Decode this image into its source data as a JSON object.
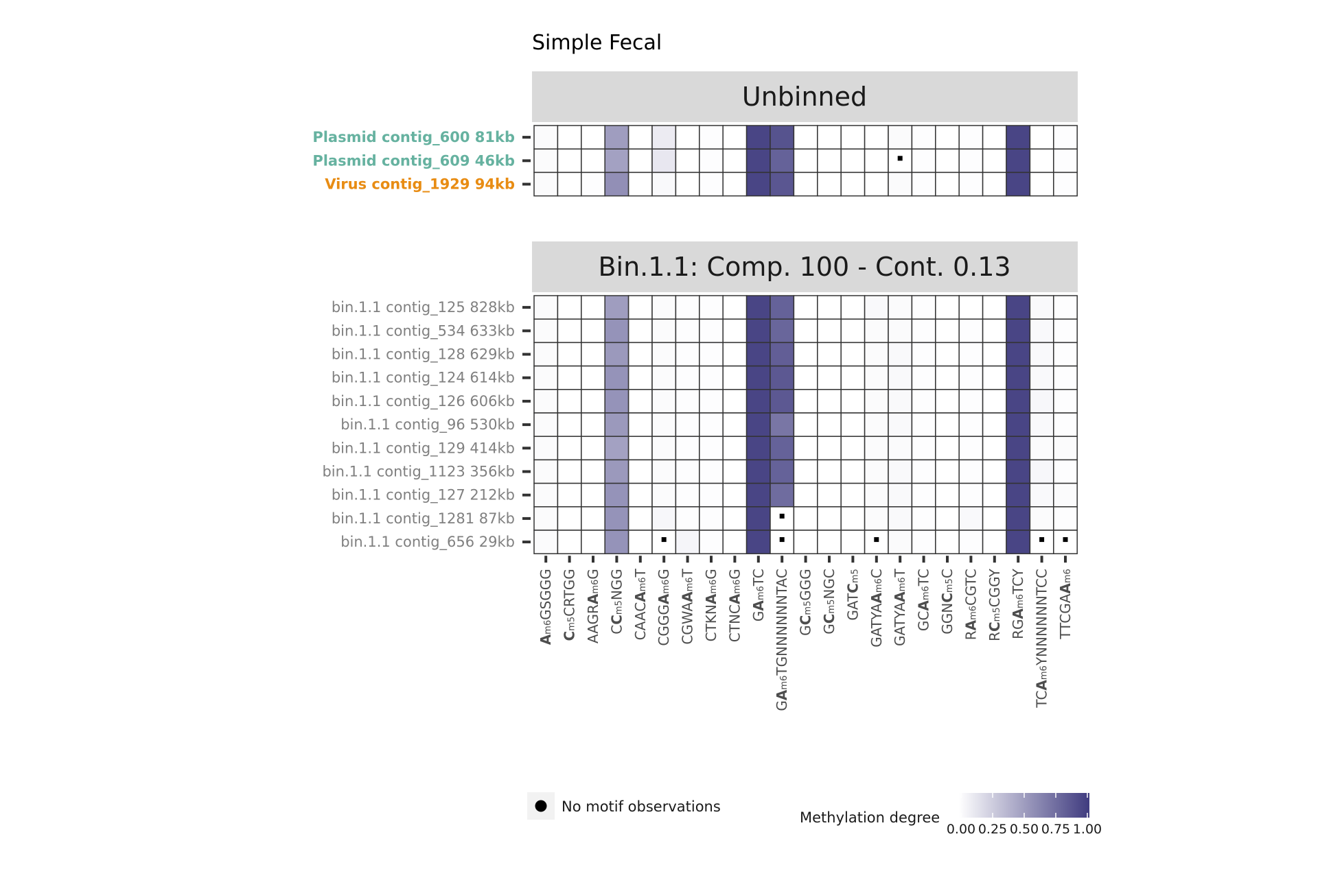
{
  "chart_data": {
    "type": "heatmap",
    "title": "Simple Fecal",
    "motifs": [
      [
        {
          "t": "A",
          "b": true
        },
        {
          "t": "m6",
          "s": true
        },
        {
          "t": "GSGGG"
        }
      ],
      [
        {
          "t": "C",
          "b": true
        },
        {
          "t": "m5",
          "s": true
        },
        {
          "t": "CRTGG"
        }
      ],
      [
        {
          "t": "AAGR"
        },
        {
          "t": "A",
          "b": true
        },
        {
          "t": "m6",
          "s": true
        },
        {
          "t": "G"
        }
      ],
      [
        {
          "t": "C"
        },
        {
          "t": "C",
          "b": true
        },
        {
          "t": "m5",
          "s": true
        },
        {
          "t": "NGG"
        }
      ],
      [
        {
          "t": "CAAC"
        },
        {
          "t": "A",
          "b": true
        },
        {
          "t": "m6",
          "s": true
        },
        {
          "t": "T"
        }
      ],
      [
        {
          "t": "CGGG"
        },
        {
          "t": "A",
          "b": true
        },
        {
          "t": "m6",
          "s": true
        },
        {
          "t": "G"
        }
      ],
      [
        {
          "t": "CGWA"
        },
        {
          "t": "A",
          "b": true
        },
        {
          "t": "m6",
          "s": true
        },
        {
          "t": "T"
        }
      ],
      [
        {
          "t": "CTKN"
        },
        {
          "t": "A",
          "b": true
        },
        {
          "t": "m6",
          "s": true
        },
        {
          "t": "G"
        }
      ],
      [
        {
          "t": "CTNC"
        },
        {
          "t": "A",
          "b": true
        },
        {
          "t": "m6",
          "s": true
        },
        {
          "t": "G"
        }
      ],
      [
        {
          "t": "G"
        },
        {
          "t": "A",
          "b": true
        },
        {
          "t": "m6",
          "s": true
        },
        {
          "t": "TC"
        }
      ],
      [
        {
          "t": "G"
        },
        {
          "t": "A",
          "b": true
        },
        {
          "t": "m6",
          "s": true
        },
        {
          "t": "TGNNNNNNTAC"
        }
      ],
      [
        {
          "t": "G"
        },
        {
          "t": "C",
          "b": true
        },
        {
          "t": "m5",
          "s": true
        },
        {
          "t": "GGG"
        }
      ],
      [
        {
          "t": "G"
        },
        {
          "t": "C",
          "b": true
        },
        {
          "t": "m5",
          "s": true
        },
        {
          "t": "NGC"
        }
      ],
      [
        {
          "t": "GAT"
        },
        {
          "t": "C",
          "b": true
        },
        {
          "t": "m5",
          "s": true
        }
      ],
      [
        {
          "t": "GATYA"
        },
        {
          "t": "A",
          "b": true
        },
        {
          "t": "m6",
          "s": true
        },
        {
          "t": "C"
        }
      ],
      [
        {
          "t": "GATYA"
        },
        {
          "t": "A",
          "b": true
        },
        {
          "t": "m6",
          "s": true
        },
        {
          "t": "T"
        }
      ],
      [
        {
          "t": "GC"
        },
        {
          "t": "A",
          "b": true
        },
        {
          "t": "m6",
          "s": true
        },
        {
          "t": "TC"
        }
      ],
      [
        {
          "t": "GGN"
        },
        {
          "t": "C",
          "b": true
        },
        {
          "t": "m5",
          "s": true
        },
        {
          "t": "C"
        }
      ],
      [
        {
          "t": "R"
        },
        {
          "t": "A",
          "b": true
        },
        {
          "t": "m6",
          "s": true
        },
        {
          "t": "CGTC"
        }
      ],
      [
        {
          "t": "R"
        },
        {
          "t": "C",
          "b": true
        },
        {
          "t": "m5",
          "s": true
        },
        {
          "t": "CGGY"
        }
      ],
      [
        {
          "t": "RG"
        },
        {
          "t": "A",
          "b": true
        },
        {
          "t": "m6",
          "s": true
        },
        {
          "t": "TCY"
        }
      ],
      [
        {
          "t": "TC"
        },
        {
          "t": "A",
          "b": true
        },
        {
          "t": "m6",
          "s": true
        },
        {
          "t": "YNNNNNNTCC"
        }
      ],
      [
        {
          "t": "TTCGA"
        },
        {
          "t": "A",
          "b": true
        },
        {
          "t": "m6",
          "s": true
        }
      ]
    ],
    "panels": [
      {
        "strip": "Unbinned",
        "rows": [
          {
            "label": "Plasmid contig_600 81kb",
            "color": "#66b2a0",
            "bold": true,
            "values": [
              0.02,
              0,
              0,
              0.5,
              0,
              0.1,
              0,
              0.01,
              0,
              0.95,
              0.88,
              0,
              0,
              0,
              0,
              0.02,
              0.01,
              0,
              0.01,
              0,
              0.95,
              0,
              0.01
            ],
            "missing": []
          },
          {
            "label": "Plasmid contig_609 46kb",
            "color": "#66b2a0",
            "bold": true,
            "values": [
              0.02,
              0,
              0,
              0.48,
              0,
              0.12,
              0,
              0.01,
              0,
              0.95,
              0.8,
              0,
              0,
              0,
              0,
              0,
              0.01,
              0,
              0.01,
              0,
              0.95,
              0,
              0.01
            ],
            "missing": [
              15
            ]
          },
          {
            "label": "Virus contig_1929 94kb",
            "color": "#e88c13",
            "bold": true,
            "values": [
              0.02,
              0,
              0.01,
              0.57,
              0,
              0.03,
              0,
              0.01,
              0,
              0.95,
              0.86,
              0,
              0,
              0,
              0,
              0.02,
              0.01,
              0,
              0.01,
              0,
              0.95,
              0,
              0.01
            ],
            "missing": []
          }
        ]
      },
      {
        "strip": "Bin.1.1: Comp. 100 - Cont. 0.13",
        "rows": [
          {
            "label": "bin.1.1 contig_125 828kb",
            "color": "#808080",
            "bold": false,
            "values": [
              0.02,
              0,
              0,
              0.5,
              0,
              0.02,
              0.01,
              0.01,
              0,
              0.95,
              0.8,
              0,
              0,
              0,
              0.03,
              0.02,
              0.01,
              0,
              0,
              0,
              0.95,
              0.03,
              0.01
            ],
            "missing": []
          },
          {
            "label": "bin.1.1 contig_534 633kb",
            "color": "#808080",
            "bold": false,
            "values": [
              0.02,
              0,
              0,
              0.55,
              0,
              0.02,
              0.01,
              0.01,
              0,
              0.95,
              0.78,
              0,
              0,
              0,
              0.02,
              0.02,
              0.01,
              0,
              0.01,
              0,
              0.95,
              0.03,
              0.01
            ],
            "missing": []
          },
          {
            "label": "bin.1.1 contig_128 629kb",
            "color": "#808080",
            "bold": false,
            "values": [
              0.02,
              0,
              0,
              0.52,
              0,
              0.02,
              0.01,
              0.01,
              0,
              0.95,
              0.82,
              0,
              0,
              0,
              0.02,
              0.03,
              0.01,
              0,
              0.01,
              0,
              0.95,
              0.03,
              0.01
            ],
            "missing": []
          },
          {
            "label": "bin.1.1 contig_124 614kb",
            "color": "#808080",
            "bold": false,
            "values": [
              0.02,
              0,
              0,
              0.55,
              0,
              0.02,
              0.01,
              0.01,
              0,
              0.95,
              0.85,
              0,
              0,
              0,
              0.02,
              0.03,
              0.01,
              0,
              0.01,
              0,
              0.95,
              0.03,
              0.01
            ],
            "missing": []
          },
          {
            "label": "bin.1.1 contig_126 606kb",
            "color": "#808080",
            "bold": false,
            "values": [
              0.02,
              0,
              0,
              0.55,
              0,
              0.02,
              0.01,
              0.01,
              0,
              0.95,
              0.85,
              0,
              0,
              0,
              0.02,
              0.03,
              0.01,
              0,
              0.01,
              0,
              0.95,
              0.04,
              0.01
            ],
            "missing": []
          },
          {
            "label": "bin.1.1 contig_96 530kb",
            "color": "#808080",
            "bold": false,
            "values": [
              0.02,
              0,
              0,
              0.52,
              0,
              0.02,
              0.01,
              0.01,
              0,
              0.95,
              0.7,
              0,
              0,
              0,
              0.02,
              0.03,
              0.01,
              0,
              0.01,
              0,
              0.95,
              0.03,
              0.01
            ],
            "missing": []
          },
          {
            "label": "bin.1.1 contig_129 414kb",
            "color": "#808080",
            "bold": false,
            "values": [
              0.02,
              0,
              0,
              0.48,
              0,
              0.02,
              0.01,
              0.01,
              0,
              0.95,
              0.8,
              0,
              0,
              0,
              0.02,
              0.02,
              0.01,
              0,
              0.01,
              0,
              0.95,
              0.02,
              0.02
            ],
            "missing": []
          },
          {
            "label": "bin.1.1 contig_1123 356kb",
            "color": "#808080",
            "bold": false,
            "values": [
              0.02,
              0,
              0,
              0.52,
              0,
              0.02,
              0.01,
              0.01,
              0,
              0.95,
              0.8,
              0,
              0,
              0,
              0.02,
              0.03,
              0.01,
              0,
              0.01,
              0,
              0.95,
              0.04,
              0.01
            ],
            "missing": []
          },
          {
            "label": "bin.1.1 contig_127 212kb",
            "color": "#808080",
            "bold": false,
            "values": [
              0.02,
              0,
              0,
              0.55,
              0,
              0.02,
              0.01,
              0.01,
              0,
              0.95,
              0.75,
              0,
              0,
              0,
              0.02,
              0.03,
              0.01,
              0,
              0.01,
              0,
              0.95,
              0.03,
              0.02
            ],
            "missing": []
          },
          {
            "label": "bin.1.1 contig_1281 87kb",
            "color": "#808080",
            "bold": false,
            "values": [
              0.02,
              0,
              0,
              0.55,
              0,
              0.04,
              0.01,
              0.01,
              0,
              0.95,
              0,
              0,
              0,
              0,
              0.02,
              0.03,
              0.01,
              0,
              0.03,
              0,
              0.95,
              0.02,
              0.01
            ],
            "missing": [
              10
            ]
          },
          {
            "label": "bin.1.1 contig_656 29kb",
            "color": "#808080",
            "bold": false,
            "values": [
              0.02,
              0,
              0,
              0.55,
              0,
              0,
              0.05,
              0.01,
              0,
              0.95,
              0,
              0,
              0,
              0,
              0,
              0.02,
              0.01,
              0,
              0.01,
              0,
              0.95,
              0,
              0
            ],
            "missing": [
              5,
              10,
              14,
              21,
              22
            ]
          }
        ]
      }
    ],
    "legend": {
      "missing_label": "No motif observations",
      "color_title": "Methylation degree",
      "ticks": [
        "0.00",
        "0.25",
        "0.50",
        "0.75",
        "1.00"
      ],
      "low_color": "#ffffff",
      "high_color": "#3f3b7f"
    }
  }
}
